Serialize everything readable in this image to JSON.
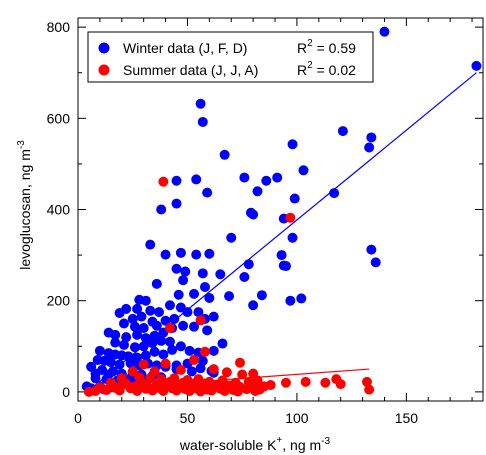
{
  "chart_data": {
    "type": "scatter",
    "title": "",
    "xlabel": "water-soluble K",
    "xlabel_sup": "+",
    "xlabel_unit": ", ng m",
    "xlabel_unit_sup": "-3",
    "ylabel": "levoglucosan, ng m",
    "ylabel_sup": "-3",
    "xlim": [
      0,
      185
    ],
    "ylim": [
      -20,
      820
    ],
    "xticks": [
      0,
      50,
      100,
      150
    ],
    "yticks": [
      0,
      200,
      400,
      600,
      800
    ],
    "x_minor_step": 10,
    "y_minor_step": 100,
    "grid": false,
    "legend_position": "top-left",
    "series": [
      {
        "name": "Winter data    (J, F, D)",
        "r2_text": "R",
        "r2_sup": "2",
        "r2_value": " = 0.59",
        "color": "#0000ff",
        "fit": {
          "x": [
            5,
            182
          ],
          "y": [
            3,
            700
          ]
        },
        "points": [
          [
            140,
            790
          ],
          [
            182,
            715
          ],
          [
            56,
            632
          ],
          [
            57,
            592
          ],
          [
            121,
            572
          ],
          [
            134,
            558
          ],
          [
            133,
            536
          ],
          [
            67,
            520
          ],
          [
            45,
            463
          ],
          [
            98,
            543
          ],
          [
            86,
            463
          ],
          [
            82,
            440
          ],
          [
            91,
            470
          ],
          [
            103,
            486
          ],
          [
            117,
            436
          ],
          [
            59,
            437
          ],
          [
            76,
            470
          ],
          [
            80,
            389
          ],
          [
            38,
            400
          ],
          [
            45,
            413
          ],
          [
            99,
            424
          ],
          [
            54,
            466
          ],
          [
            94,
            380
          ],
          [
            79,
            393
          ],
          [
            134,
            312
          ],
          [
            136,
            284
          ],
          [
            70,
            338
          ],
          [
            33,
            323
          ],
          [
            47,
            305
          ],
          [
            40,
            301
          ],
          [
            54,
            301
          ],
          [
            60,
            303
          ],
          [
            93,
            300
          ],
          [
            94,
            277
          ],
          [
            95,
            276
          ],
          [
            98,
            338
          ],
          [
            78,
            280
          ],
          [
            45,
            270
          ],
          [
            49,
            264
          ],
          [
            57,
            260
          ],
          [
            65,
            258
          ],
          [
            76,
            252
          ],
          [
            58,
            230
          ],
          [
            36,
            237
          ],
          [
            48,
            245
          ],
          [
            53,
            215
          ],
          [
            46,
            213
          ],
          [
            60,
            206
          ],
          [
            69,
            210
          ],
          [
            97,
            200
          ],
          [
            102,
            205
          ],
          [
            80,
            190
          ],
          [
            84,
            212
          ],
          [
            28,
            202
          ],
          [
            31,
            200
          ],
          [
            22,
            182
          ],
          [
            27,
            182
          ],
          [
            33,
            178
          ],
          [
            19,
            173
          ],
          [
            25,
            160
          ],
          [
            29,
            165
          ],
          [
            37,
            175
          ],
          [
            42,
            190
          ],
          [
            47,
            185
          ],
          [
            50,
            175
          ],
          [
            55,
            175
          ],
          [
            58,
            160
          ],
          [
            62,
            165
          ],
          [
            40,
            156
          ],
          [
            44,
            160
          ],
          [
            34,
            154
          ],
          [
            21,
            150
          ],
          [
            26,
            143
          ],
          [
            30,
            140
          ],
          [
            36,
            145
          ],
          [
            14,
            130
          ],
          [
            17,
            125
          ],
          [
            22,
            120
          ],
          [
            27,
            125
          ],
          [
            31,
            118
          ],
          [
            35,
            123
          ],
          [
            39,
            130
          ],
          [
            43,
            140
          ],
          [
            48,
            145
          ],
          [
            53,
            143
          ],
          [
            59,
            135
          ],
          [
            17,
            108
          ],
          [
            21,
            103
          ],
          [
            26,
            98
          ],
          [
            30,
            100
          ],
          [
            34,
            107
          ],
          [
            38,
            112
          ],
          [
            42,
            110
          ],
          [
            47,
            100
          ],
          [
            51,
            90
          ],
          [
            55,
            86
          ],
          [
            62,
            90
          ],
          [
            66,
            106
          ],
          [
            10,
            90
          ],
          [
            14,
            85
          ],
          [
            17,
            82
          ],
          [
            20,
            80
          ],
          [
            23,
            78
          ],
          [
            27,
            75
          ],
          [
            31,
            80
          ],
          [
            35,
            88
          ],
          [
            39,
            82
          ],
          [
            43,
            92
          ],
          [
            9,
            70
          ],
          [
            12,
            68
          ],
          [
            15,
            65
          ],
          [
            19,
            60
          ],
          [
            24,
            63
          ],
          [
            28,
            58
          ],
          [
            32,
            62
          ],
          [
            36,
            58
          ],
          [
            40,
            55
          ],
          [
            45,
            50
          ],
          [
            52,
            45
          ],
          [
            56,
            52
          ],
          [
            61,
            46
          ],
          [
            6,
            55
          ],
          [
            11,
            48
          ],
          [
            16,
            45
          ],
          [
            20,
            40
          ],
          [
            25,
            42
          ],
          [
            29,
            38
          ],
          [
            34,
            35
          ],
          [
            38,
            32
          ],
          [
            8,
            30
          ],
          [
            13,
            28
          ],
          [
            18,
            25
          ],
          [
            22,
            22
          ],
          [
            27,
            20
          ],
          [
            31,
            18
          ],
          [
            36,
            15
          ],
          [
            10,
            12
          ],
          [
            15,
            10
          ],
          [
            19,
            8
          ],
          [
            6,
            8
          ],
          [
            12,
            5
          ],
          [
            4,
            12
          ],
          [
            62,
            42
          ],
          [
            8,
            40
          ],
          [
            14,
            38
          ],
          [
            24,
            30
          ],
          [
            30,
            28
          ],
          [
            50,
            62
          ],
          [
            57,
            68
          ],
          [
            45,
            58
          ]
        ]
      },
      {
        "name": "Summer data (J, J, A)",
        "r2_text": "R",
        "r2_sup": "2",
        "r2_value": " = 0.02",
        "color": "#ff0000",
        "fit": {
          "x": [
            5,
            133
          ],
          "y": [
            5,
            50
          ]
        },
        "points": [
          [
            39,
            461
          ],
          [
            97,
            382
          ],
          [
            56,
            157
          ],
          [
            42,
            140
          ],
          [
            58,
            88
          ],
          [
            74,
            64
          ],
          [
            53,
            70
          ],
          [
            40,
            62
          ],
          [
            30,
            60
          ],
          [
            25,
            45
          ],
          [
            35,
            45
          ],
          [
            47,
            48
          ],
          [
            62,
            50
          ],
          [
            68,
            43
          ],
          [
            75,
            38
          ],
          [
            80,
            40
          ],
          [
            20,
            30
          ],
          [
            28,
            32
          ],
          [
            33,
            30
          ],
          [
            38,
            28
          ],
          [
            44,
            30
          ],
          [
            50,
            26
          ],
          [
            55,
            28
          ],
          [
            60,
            22
          ],
          [
            66,
            25
          ],
          [
            72,
            20
          ],
          [
            78,
            22
          ],
          [
            82,
            18
          ],
          [
            15,
            20
          ],
          [
            22,
            18
          ],
          [
            30,
            17
          ],
          [
            36,
            15
          ],
          [
            41,
            14
          ],
          [
            46,
            16
          ],
          [
            52,
            13
          ],
          [
            57,
            15
          ],
          [
            63,
            12
          ],
          [
            69,
            14
          ],
          [
            74,
            11
          ],
          [
            80,
            13
          ],
          [
            85,
            12
          ],
          [
            10,
            10
          ],
          [
            17,
            9
          ],
          [
            24,
            8
          ],
          [
            31,
            7
          ],
          [
            37,
            9
          ],
          [
            43,
            8
          ],
          [
            49,
            6
          ],
          [
            54,
            8
          ],
          [
            59,
            5
          ],
          [
            65,
            7
          ],
          [
            71,
            4
          ],
          [
            77,
            6
          ],
          [
            83,
            5
          ],
          [
            13,
            4
          ],
          [
            19,
            3
          ],
          [
            27,
            2
          ],
          [
            34,
            3
          ],
          [
            39,
            2
          ],
          [
            45,
            3
          ],
          [
            51,
            2
          ],
          [
            56,
            1
          ],
          [
            61,
            3
          ],
          [
            67,
            2
          ],
          [
            73,
            1
          ],
          [
            8,
            2
          ],
          [
            5,
            0
          ],
          [
            81,
            2
          ],
          [
            88,
            15
          ],
          [
            95,
            20
          ],
          [
            104,
            22
          ],
          [
            113,
            20
          ],
          [
            118,
            28
          ],
          [
            120,
            17
          ],
          [
            132,
            22
          ],
          [
            133,
            5
          ],
          [
            82,
            25
          ],
          [
            42,
            22
          ],
          [
            48,
            20
          ],
          [
            58,
            18
          ],
          [
            64,
            16
          ],
          [
            70,
            10
          ],
          [
            26,
            12
          ],
          [
            32,
            10
          ],
          [
            20,
            15
          ],
          [
            38,
            20
          ],
          [
            44,
            12
          ],
          [
            53,
            18
          ],
          [
            60,
            10
          ],
          [
            66,
            20
          ]
        ]
      }
    ]
  }
}
